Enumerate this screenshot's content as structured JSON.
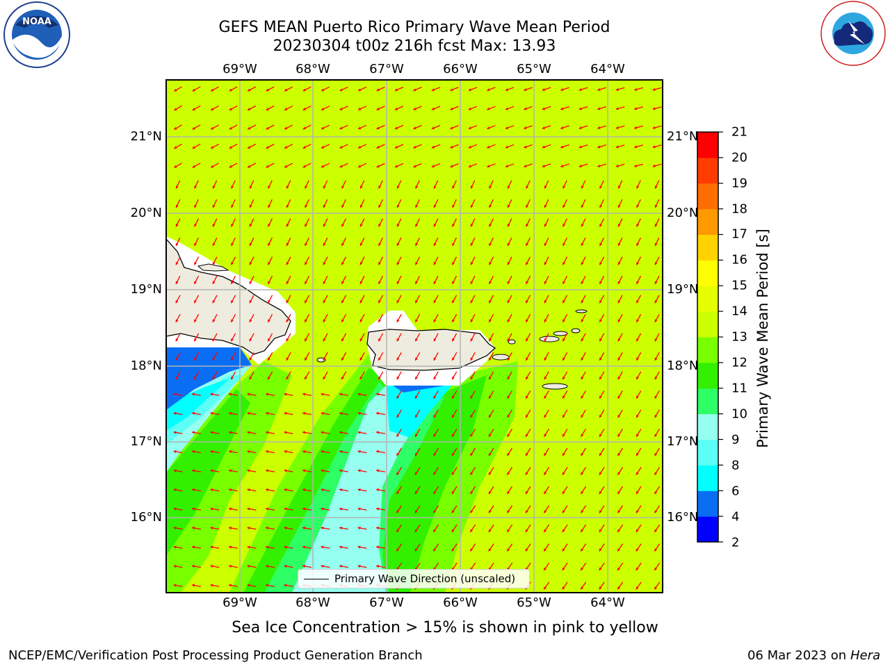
{
  "title": {
    "line1": "GEFS MEAN Puerto Rico Primary Wave Mean Period",
    "line2": "20230304 t00z 216h fcst   Max: 13.93"
  },
  "map": {
    "lon_labels": [
      "69°W",
      "68°W",
      "67°W",
      "66°W",
      "65°W",
      "64°W"
    ],
    "lat_labels": [
      "21°N",
      "20°N",
      "19°N",
      "18°N",
      "17°N",
      "16°N"
    ],
    "lon_range": [
      -70.0,
      -63.25
    ],
    "lat_range": [
      15.0,
      21.75
    ],
    "legend": "Primary Wave Direction (unscaled)",
    "arrow_color": "#ff0000",
    "land_color": "#eeecde"
  },
  "colorbar": {
    "label": "Primary Wave Mean Period [s]",
    "ticks": [
      "21",
      "20",
      "19",
      "18",
      "17",
      "16",
      "15",
      "14",
      "13",
      "12",
      "11",
      "10",
      "9",
      "8",
      "6",
      "4",
      "2"
    ],
    "colors_bottom_to_top": [
      "#0000ff",
      "#0a6ef5",
      "#00ffff",
      "#5cfff5",
      "#96fff0",
      "#2dff64",
      "#32f000",
      "#78ff00",
      "#ccff00",
      "#e6ff00",
      "#ffff00",
      "#ffd200",
      "#ff9900",
      "#ff6e00",
      "#ff3c00",
      "#ff0000"
    ]
  },
  "footer": {
    "ice_note": "Sea Ice Concentration > 15% is shown in pink to yellow",
    "credit": "NCEP/EMC/Verification Post Processing Product Generation Branch",
    "date": "06 Mar 2023 on",
    "host": "Hera"
  },
  "logos": {
    "noaa": "NOAA",
    "nws": "NATIONAL WEATHER SERVICE"
  }
}
